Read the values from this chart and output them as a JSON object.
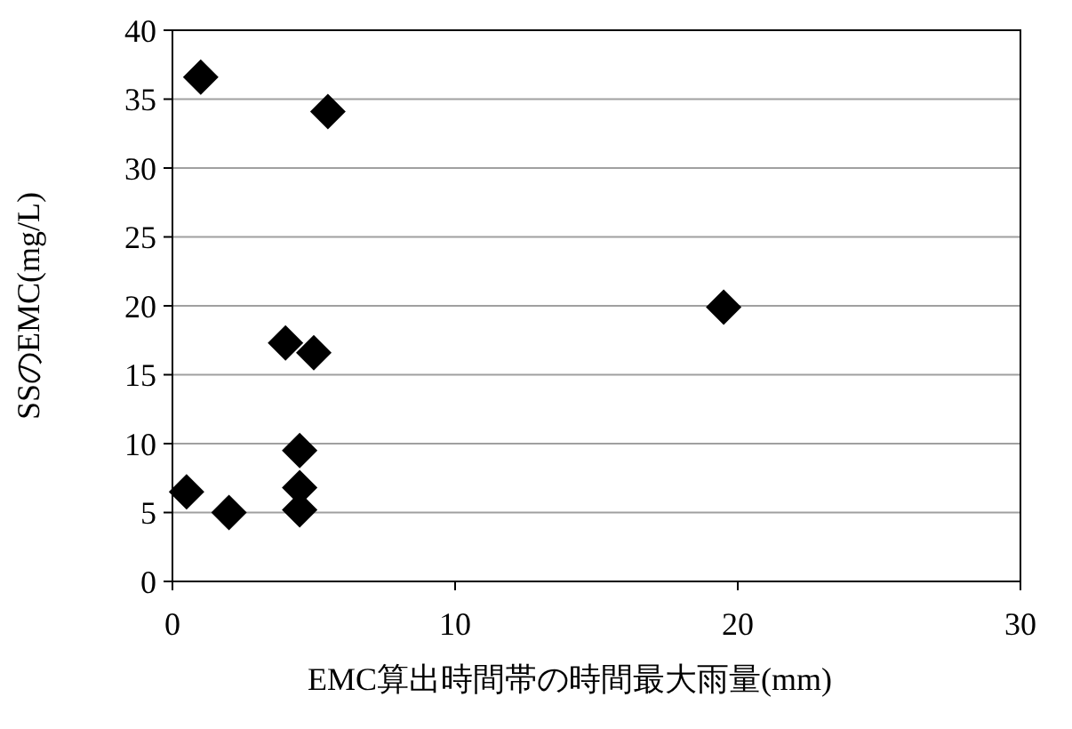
{
  "chart_data": {
    "type": "scatter",
    "xlabel": "EMC算出時間帯の時間最大雨量(mm)",
    "ylabel": "SSのEMC(mg/L)",
    "x": [
      1,
      5.5,
      4,
      5,
      4.5,
      4.5,
      4.5,
      0.5,
      2,
      19.5
    ],
    "values": [
      36.6,
      34.1,
      17.3,
      16.6,
      9.5,
      6.8,
      5.2,
      6.5,
      5,
      19.9
    ],
    "color": "#000000",
    "marker": "diamond",
    "xlim": [
      0,
      30
    ],
    "xticks": [
      0,
      10,
      20,
      30
    ],
    "ylim": [
      0,
      40
    ],
    "yticks": [
      0,
      5,
      10,
      15,
      20,
      25,
      30,
      35,
      40
    ],
    "grid": "y"
  }
}
